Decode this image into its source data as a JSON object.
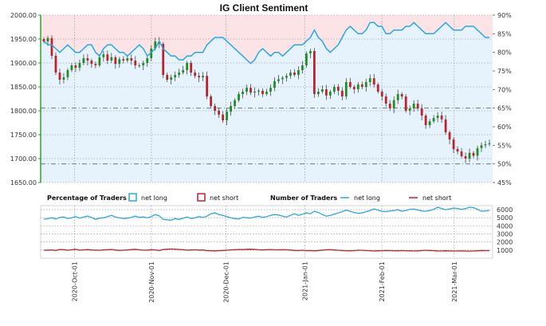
{
  "chart_data": [
    {
      "type": "candlestick",
      "title": "IG Client Sentiment",
      "ylim_price": [
        1650,
        2000
      ],
      "price_ticks": [
        "2000.00",
        "1950.00",
        "1900.00",
        "1850.00",
        "1800.00",
        "1750.00",
        "1700.00",
        "1650.00"
      ],
      "ylim_percent": [
        45,
        90
      ],
      "percent_ticks": [
        "90%",
        "85%",
        "80%",
        "75%",
        "70%",
        "65%",
        "60%",
        "55%",
        "50%",
        "45%"
      ],
      "reference_lines_percent": [
        50,
        65
      ],
      "price_series": {
        "name": "price",
        "values": [
          1945,
          1952,
          1915,
          1880,
          1865,
          1870,
          1885,
          1895,
          1890,
          1900,
          1910,
          1905,
          1898,
          1895,
          1912,
          1918,
          1905,
          1912,
          1898,
          1908,
          1905,
          1910,
          1905,
          1895,
          1895,
          1900,
          1910,
          1930,
          1945,
          1940,
          1875,
          1865,
          1870,
          1875,
          1880,
          1885,
          1900,
          1880,
          1873,
          1870,
          1873,
          1830,
          1810,
          1800,
          1792,
          1780,
          1798,
          1810,
          1822,
          1835,
          1840,
          1848,
          1838,
          1840,
          1842,
          1835,
          1840,
          1848,
          1862,
          1866,
          1869,
          1873,
          1880,
          1875,
          1885,
          1895,
          1920,
          1925,
          1835,
          1840,
          1845,
          1832,
          1840,
          1850,
          1842,
          1830,
          1860,
          1850,
          1845,
          1855,
          1850,
          1860,
          1868,
          1855,
          1840,
          1830,
          1815,
          1805,
          1822,
          1835,
          1830,
          1800,
          1805,
          1815,
          1805,
          1790,
          1770,
          1778,
          1785,
          1790,
          1782,
          1755,
          1740,
          1720,
          1715,
          1705,
          1700,
          1712,
          1706,
          1722,
          1728,
          1730,
          1732
        ]
      },
      "sentiment_percent_long": {
        "name": "net long",
        "values": [
          83,
          82,
          82,
          81,
          80,
          81,
          82,
          81,
          80,
          80,
          81,
          82,
          82,
          80,
          79,
          81,
          82,
          82,
          81,
          80,
          80,
          79,
          80,
          81,
          82,
          81,
          79,
          80,
          81,
          83,
          81,
          80,
          79,
          79,
          78,
          78,
          79,
          79,
          80,
          80,
          80,
          82,
          83,
          84,
          84,
          84,
          83,
          82,
          81,
          80,
          79,
          78,
          77,
          78,
          80,
          81,
          80,
          79,
          80,
          80,
          79,
          80,
          81,
          82,
          82,
          82,
          83,
          84,
          86,
          84,
          83,
          81,
          80,
          81,
          82,
          84,
          86,
          87,
          86,
          85,
          85,
          86,
          88,
          88,
          87,
          87,
          85,
          85,
          86,
          86,
          86,
          87,
          87,
          88,
          87,
          86,
          85,
          85,
          85,
          86,
          87,
          88,
          87,
          86,
          86,
          86,
          87,
          87,
          87,
          86,
          85,
          84,
          84
        ]
      }
    },
    {
      "type": "line",
      "title": "Number of Traders",
      "ylim": [
        0,
        6500
      ],
      "y_ticks": [
        "6000",
        "5000",
        "4000",
        "3000",
        "2000",
        "1000"
      ],
      "x_ticks": [
        "2020-Oct-01",
        "2020-Nov-01",
        "2020-Dec-01",
        "2021-Jan-01",
        "2021-Feb-01",
        "2021-Mar-01"
      ],
      "legend": {
        "percentage_label": "Percentage of Traders",
        "number_label": "Number of Traders",
        "net_long": "net long",
        "net_short": "net short"
      },
      "series": [
        {
          "name": "net long",
          "values": [
            4800,
            4900,
            5000,
            4850,
            5050,
            5100,
            4900,
            5000,
            5150,
            4950,
            5100,
            5200,
            5050,
            4800,
            4950,
            5000,
            5150,
            5300,
            5100,
            5000,
            4900,
            4950,
            5050,
            5200,
            5050,
            5100,
            5000,
            5150,
            5400,
            5250,
            4800,
            4750,
            4700,
            4900,
            4800,
            4950,
            5100,
            4900,
            5000,
            5150,
            5050,
            5200,
            5500,
            5600,
            5400,
            5300,
            5150,
            5000,
            4900,
            4850,
            5050,
            5000,
            4950,
            5100,
            5200,
            5050,
            5150,
            5300,
            5400,
            5350,
            5200,
            5100,
            5300,
            5500,
            5300,
            5450,
            5600,
            5500,
            5800,
            5650,
            5400,
            5200,
            5300,
            5450,
            5600,
            5750,
            5950,
            5800,
            5650,
            5550,
            5600,
            5750,
            5900,
            6100,
            5950,
            5800,
            5750,
            5850,
            5900,
            6000,
            5800,
            5900,
            6050,
            6100,
            5950,
            5850,
            5800,
            5900,
            6050,
            6300,
            6150,
            6000,
            6100,
            6200,
            6150,
            6050,
            6150,
            6300,
            6250,
            6050,
            5800,
            5850,
            5900
          ]
        },
        {
          "name": "net short",
          "values": [
            980,
            1000,
            1020,
            960,
            1080,
            1050,
            980,
            1040,
            1100,
            990,
            1030,
            1060,
            1010,
            1000,
            980,
            1020,
            1050,
            1080,
            1010,
            970,
            990,
            1020,
            1060,
            1100,
            1030,
            990,
            1000,
            1050,
            1020,
            960,
            1080,
            1110,
            1140,
            1120,
            1080,
            1050,
            990,
            1010,
            1040,
            1000,
            1010,
            960,
            930,
            910,
            940,
            960,
            990,
            1020,
            1050,
            1080,
            1060,
            1100,
            1110,
            1090,
            1040,
            1020,
            1050,
            1070,
            1040,
            1030,
            1050,
            1040,
            1000,
            970,
            960,
            980,
            940,
            950,
            920,
            960,
            1000,
            1040,
            1050,
            1010,
            980,
            960,
            930,
            920,
            950,
            990,
            980,
            950,
            930,
            900,
            920,
            940,
            960,
            950,
            930,
            920,
            950,
            930,
            920,
            900,
            920,
            950,
            980,
            960,
            940,
            910,
            900,
            920,
            900,
            890,
            900,
            910,
            890,
            880,
            900,
            920,
            960,
            940,
            950
          ]
        }
      ]
    }
  ]
}
